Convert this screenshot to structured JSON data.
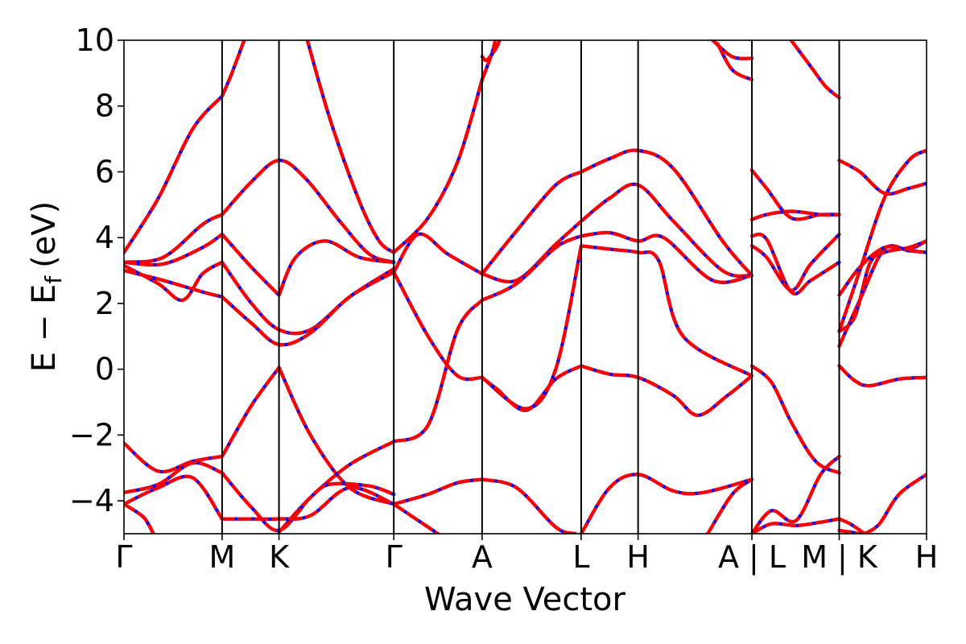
{
  "chart_data": {
    "type": "line",
    "title": "",
    "xlabel": "Wave Vector",
    "ylabel": "E − E",
    "ylabel_sub": "f",
    "ylabel_unit": "(eV)",
    "ylim": [
      -5,
      10
    ],
    "yticks": [
      -4,
      -2,
      0,
      2,
      4,
      6,
      8,
      10
    ],
    "ytick_labels": [
      "−4",
      "−2",
      "0",
      "2",
      "4",
      "6",
      "8",
      "10"
    ],
    "xlim": [
      0,
      8.18
    ],
    "kpoints": [
      {
        "label": "Γ",
        "x": 0.0
      },
      {
        "label": "M",
        "x": 1.0
      },
      {
        "label": "K",
        "x": 1.58
      },
      {
        "label": "Γ",
        "x": 2.75
      },
      {
        "label": "A",
        "x": 3.65
      },
      {
        "label": "L",
        "x": 4.66
      },
      {
        "label": "H",
        "x": 5.24
      },
      {
        "label": "A | L",
        "x": 6.4
      },
      {
        "label": "M | K",
        "x": 7.29
      },
      {
        "label": "H",
        "x": 8.18
      }
    ],
    "segment_breaks": [
      6.4,
      7.29
    ],
    "colors": {
      "band_solid": "#0000ff",
      "band_dashed": "#ff0000"
    },
    "series_style": "each band drawn as solid blue line overlaid with dashed red line",
    "bands": [
      {
        "x": [
          0,
          0.35,
          0.7,
          1.0
        ],
        "y": [
          3.55,
          5.2,
          7.3,
          8.3
        ]
      },
      {
        "x": [
          1.0,
          1.1,
          1.25
        ],
        "y": [
          8.3,
          9.0,
          10.2
        ]
      },
      {
        "x": [
          1.85,
          2.1,
          2.4,
          2.6,
          2.75
        ],
        "y": [
          10.2,
          7.6,
          5.1,
          3.9,
          3.55
        ]
      },
      {
        "x": [
          2.75,
          3.1,
          3.4,
          3.65
        ],
        "y": [
          3.55,
          4.6,
          6.3,
          8.8
        ]
      },
      {
        "x": [
          3.65,
          3.75,
          3.8
        ],
        "y": [
          8.8,
          9.6,
          10.2
        ]
      },
      {
        "x": [
          3.65,
          3.7,
          3.8,
          3.85
        ],
        "y": [
          9.5,
          9.4,
          9.8,
          10.2
        ]
      },
      {
        "x": [
          0,
          0.4,
          0.8,
          1.0
        ],
        "y": [
          3.25,
          3.4,
          4.4,
          4.7
        ]
      },
      {
        "x": [
          1.0,
          1.3,
          1.58,
          1.85,
          2.2,
          2.5,
          2.75
        ],
        "y": [
          4.7,
          5.7,
          6.35,
          5.8,
          4.5,
          3.5,
          3.25
        ]
      },
      {
        "x": [
          0,
          0.4,
          0.8,
          1.0
        ],
        "y": [
          3.25,
          3.2,
          3.7,
          4.1
        ]
      },
      {
        "x": [
          1.0,
          1.3,
          1.58
        ],
        "y": [
          4.1,
          3.1,
          2.25
        ]
      },
      {
        "x": [
          1.58,
          1.75,
          2.05,
          2.4,
          2.75
        ],
        "y": [
          2.25,
          3.4,
          3.9,
          3.4,
          3.25
        ]
      },
      {
        "x": [
          0,
          0.35,
          0.6,
          0.8,
          1.0
        ],
        "y": [
          3.15,
          2.6,
          2.1,
          2.9,
          3.25
        ]
      },
      {
        "x": [
          1.0,
          1.3,
          1.58,
          1.9,
          2.3,
          2.75
        ],
        "y": [
          3.25,
          2.0,
          1.2,
          1.2,
          2.2,
          3.05
        ]
      },
      {
        "x": [
          0,
          0.4,
          0.8,
          1.0
        ],
        "y": [
          3.0,
          2.7,
          2.35,
          2.2
        ]
      },
      {
        "x": [
          1.0,
          1.3,
          1.58,
          1.9,
          2.3,
          2.75
        ],
        "y": [
          2.2,
          1.4,
          0.75,
          1.1,
          2.2,
          2.95
        ]
      },
      {
        "x": [
          2.75,
          3.0,
          3.3,
          3.65
        ],
        "y": [
          2.95,
          4.1,
          3.5,
          2.9
        ]
      },
      {
        "x": [
          3.65,
          4.0,
          4.4,
          4.66
        ],
        "y": [
          2.9,
          4.2,
          5.6,
          6.0
        ]
      },
      {
        "x": [
          4.66,
          4.95,
          5.24,
          5.6,
          6.1,
          6.4
        ],
        "y": [
          6.0,
          6.4,
          6.65,
          6.1,
          3.9,
          2.85
        ]
      },
      {
        "x": [
          3.65,
          4.0,
          4.4,
          4.66
        ],
        "y": [
          2.9,
          2.7,
          3.8,
          4.5
        ]
      },
      {
        "x": [
          4.66,
          4.95,
          5.24,
          5.6,
          6.1,
          6.4
        ],
        "y": [
          4.5,
          5.2,
          5.6,
          4.5,
          3.0,
          2.85
        ]
      },
      {
        "x": [
          3.65,
          4.0,
          4.4,
          4.66
        ],
        "y": [
          2.1,
          2.6,
          3.7,
          4.05
        ]
      },
      {
        "x": [
          4.66,
          4.95,
          5.24,
          5.5,
          6.0,
          6.4
        ],
        "y": [
          4.05,
          4.15,
          3.9,
          4.0,
          2.7,
          2.85
        ]
      },
      {
        "x": [
          2.75,
          3.1,
          3.4,
          3.65
        ],
        "y": [
          2.95,
          1.0,
          -0.2,
          -0.25
        ]
      },
      {
        "x": [
          3.65,
          4.1,
          4.4,
          4.66
        ],
        "y": [
          -0.25,
          -1.2,
          0.0,
          3.75
        ]
      },
      {
        "x": [
          4.66,
          4.95,
          5.24,
          5.45,
          5.7,
          6.4
        ],
        "y": [
          3.75,
          3.65,
          3.55,
          3.3,
          1.0,
          -0.2
        ]
      },
      {
        "x": [
          2.75,
          3.1,
          3.4,
          3.65
        ],
        "y": [
          -2.2,
          -1.7,
          1.2,
          2.1
        ]
      },
      {
        "x": [
          3.65,
          3.8,
          4.1,
          4.4,
          4.66
        ],
        "y": [
          -0.25,
          -0.6,
          -1.25,
          -0.3,
          0.1
        ]
      },
      {
        "x": [
          4.66,
          4.95,
          5.24,
          5.6,
          5.85,
          6.15,
          6.4
        ],
        "y": [
          0.1,
          -0.15,
          -0.25,
          -0.8,
          -1.4,
          -0.8,
          -0.2
        ]
      },
      {
        "x": [
          1.0,
          1.3,
          1.58
        ],
        "y": [
          -2.65,
          -1.1,
          0.05
        ]
      },
      {
        "x": [
          1.58,
          1.9,
          2.3,
          2.75
        ],
        "y": [
          0.05,
          -2.0,
          -3.6,
          -4.1
        ]
      },
      {
        "x": [
          1.58,
          1.9,
          2.3,
          2.75
        ],
        "y": [
          -4.95,
          -3.9,
          -2.9,
          -2.2
        ]
      },
      {
        "x": [
          0,
          0.35,
          0.7,
          1.0
        ],
        "y": [
          -2.25,
          -3.1,
          -2.8,
          -2.65
        ]
      },
      {
        "x": [
          0,
          0.35,
          0.7,
          1.0
        ],
        "y": [
          -3.75,
          -3.5,
          -2.85,
          -3.15
        ]
      },
      {
        "x": [
          1.0,
          1.3,
          1.58,
          1.9,
          2.1,
          2.5,
          2.75
        ],
        "y": [
          -3.15,
          -4.2,
          -4.9,
          -3.9,
          -3.5,
          -3.55,
          -3.8
        ]
      },
      {
        "x": [
          0,
          0.35,
          0.7,
          1.0
        ],
        "y": [
          -4.1,
          -3.6,
          -3.3,
          -4.55
        ]
      },
      {
        "x": [
          1.0,
          1.3,
          1.58,
          1.9,
          2.3,
          2.75
        ],
        "y": [
          -4.55,
          -4.55,
          -4.55,
          -4.45,
          -3.6,
          -4.1
        ]
      },
      {
        "x": [
          2.75,
          3.1,
          3.4,
          3.65
        ],
        "y": [
          -4.1,
          -3.8,
          -3.45,
          -3.35
        ]
      },
      {
        "x": [
          3.65,
          4.0,
          4.4,
          4.6
        ],
        "y": [
          -3.35,
          -3.6,
          -4.8,
          -5.0
        ]
      },
      {
        "x": [
          0,
          0.2,
          0.3
        ],
        "y": [
          -4.1,
          -4.5,
          -5.0
        ]
      },
      {
        "x": [
          2.75,
          3.1,
          3.2
        ],
        "y": [
          -4.1,
          -4.8,
          -5.0
        ]
      },
      {
        "x": [
          4.66,
          4.95,
          5.24,
          5.6,
          5.9,
          6.4
        ],
        "y": [
          -5.0,
          -3.6,
          -3.2,
          -3.7,
          -3.75,
          -3.35
        ]
      },
      {
        "x": [
          5.95,
          6.2,
          6.4
        ],
        "y": [
          -5.0,
          -3.8,
          -3.35
        ]
      },
      {
        "x": [
          6.4,
          6.55,
          6.8,
          7.1,
          7.29
        ],
        "y": [
          6.05,
          5.5,
          4.6,
          4.7,
          4.7
        ]
      },
      {
        "x": [
          6.4,
          6.55,
          6.8,
          7.1,
          7.29
        ],
        "y": [
          4.55,
          4.7,
          4.8,
          4.7,
          4.7
        ]
      },
      {
        "x": [
          6.4,
          6.55,
          6.8,
          7.0,
          7.29
        ],
        "y": [
          4.05,
          3.95,
          2.35,
          2.7,
          3.25
        ]
      },
      {
        "x": [
          6.4,
          6.55,
          6.8,
          7.0,
          7.29
        ],
        "y": [
          3.75,
          3.4,
          2.4,
          3.2,
          4.1
        ]
      },
      {
        "x": [
          6.4,
          6.6,
          6.8,
          7.05,
          7.29
        ],
        "y": [
          0.1,
          -0.4,
          -1.6,
          -2.8,
          -3.15
        ]
      },
      {
        "x": [
          6.4,
          6.6,
          6.85,
          7.1,
          7.29
        ],
        "y": [
          -5.0,
          -4.3,
          -4.6,
          -3.2,
          -2.65
        ]
      },
      {
        "x": [
          6.4,
          6.6,
          6.85,
          7.1,
          7.29
        ],
        "y": [
          -5.0,
          -4.7,
          -4.75,
          -4.65,
          -4.55
        ]
      },
      {
        "x": [
          6.8,
          7.0,
          7.15,
          7.29
        ],
        "y": [
          10.0,
          9.2,
          8.6,
          8.25
        ]
      },
      {
        "x": [
          6.0,
          6.2,
          6.4
        ],
        "y": [
          10.0,
          9.5,
          9.45
        ]
      },
      {
        "x": [
          6.05,
          6.2,
          6.4
        ],
        "y": [
          9.9,
          9.1,
          8.8
        ]
      },
      {
        "x": [
          7.29,
          7.5,
          7.75,
          8.0,
          8.18
        ],
        "y": [
          6.35,
          6.0,
          5.35,
          5.5,
          5.65
        ]
      },
      {
        "x": [
          7.29,
          7.5,
          7.75,
          8.0,
          8.18
        ],
        "y": [
          1.15,
          3.0,
          5.2,
          6.35,
          6.65
        ]
      },
      {
        "x": [
          7.29,
          7.5,
          7.75,
          8.0,
          8.18
        ],
        "y": [
          0.7,
          2.1,
          3.65,
          3.6,
          3.55
        ]
      },
      {
        "x": [
          7.29,
          7.5,
          7.75,
          8.0,
          8.18
        ],
        "y": [
          2.25,
          3.1,
          3.7,
          3.65,
          3.9
        ]
      },
      {
        "x": [
          7.29,
          7.45,
          7.6,
          7.75,
          8.0,
          8.18
        ],
        "y": [
          1.15,
          1.6,
          3.2,
          3.55,
          3.7,
          3.9
        ]
      },
      {
        "x": [
          7.29,
          7.45,
          7.6,
          7.9,
          8.18
        ],
        "y": [
          0.1,
          -0.35,
          -0.5,
          -0.3,
          -0.25
        ]
      },
      {
        "x": [
          7.29,
          7.4,
          7.55
        ],
        "y": [
          -4.55,
          -4.7,
          -5.0
        ]
      },
      {
        "x": [
          7.29,
          7.4,
          7.5
        ],
        "y": [
          -4.9,
          -4.95,
          -5.0
        ]
      },
      {
        "x": [
          7.55,
          7.7,
          7.9,
          8.18
        ],
        "y": [
          -5.0,
          -4.7,
          -3.8,
          -3.2
        ]
      }
    ]
  }
}
